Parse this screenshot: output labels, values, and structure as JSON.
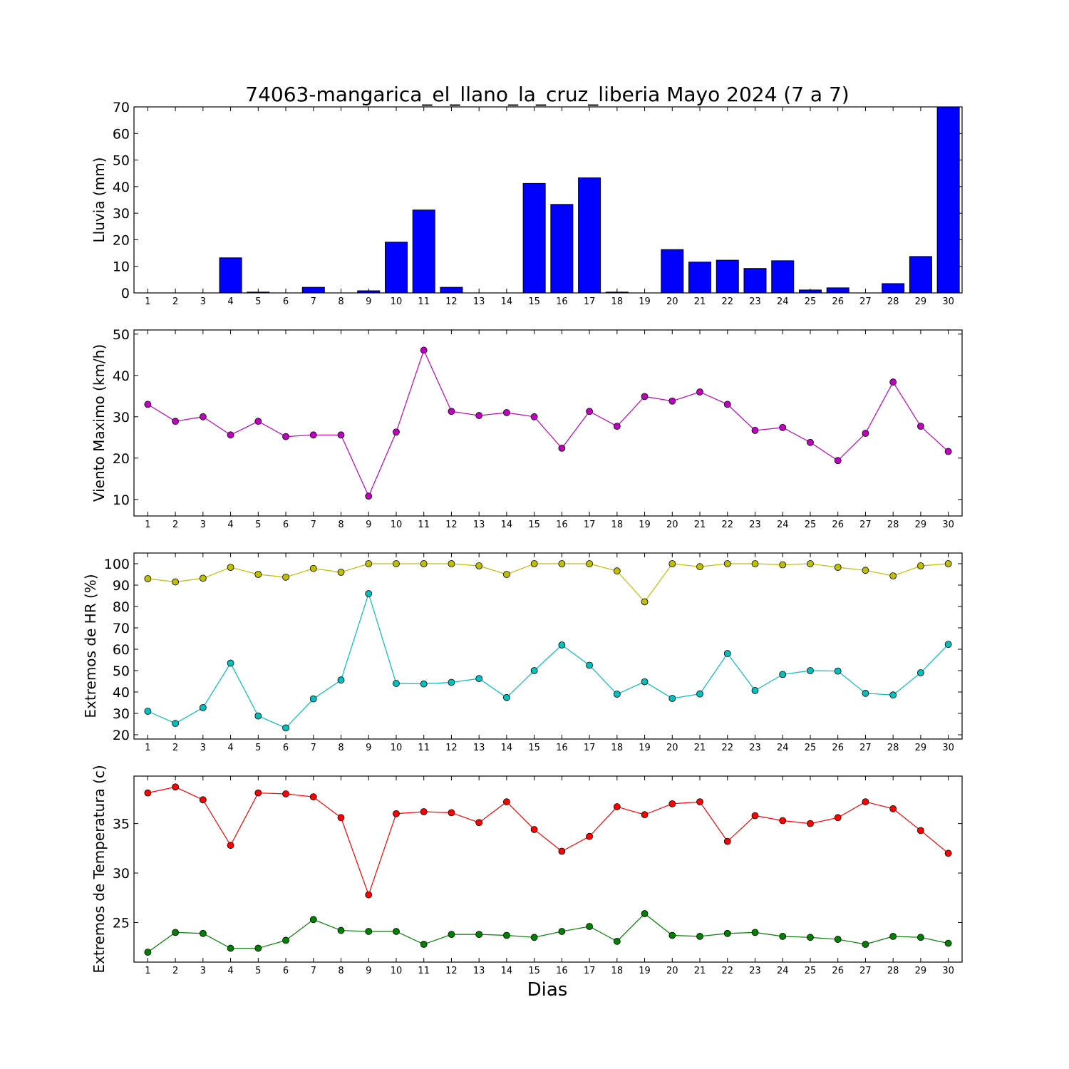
{
  "chart_data": [
    {
      "type": "bar",
      "title": "74063-mangarica_el_llano_la_cruz_liberia Mayo 2024  (7 a 7)",
      "ylabel": "Lluvia (mm)",
      "ylim": [
        0,
        70
      ],
      "yticks": [
        0,
        10,
        20,
        30,
        40,
        50,
        60,
        70
      ],
      "x": [
        1,
        2,
        3,
        4,
        5,
        6,
        7,
        8,
        9,
        10,
        11,
        12,
        13,
        14,
        15,
        16,
        17,
        18,
        19,
        20,
        21,
        22,
        23,
        24,
        25,
        26,
        27,
        28,
        29,
        30
      ],
      "series": [
        {
          "color": "#0000ff",
          "values": [
            0,
            0,
            0,
            13.2,
            0.3,
            0,
            2.1,
            0,
            0.8,
            19.1,
            31.2,
            2.1,
            0,
            0,
            41.2,
            33.3,
            43.3,
            0.3,
            0,
            16.3,
            11.6,
            12.3,
            9.2,
            12.1,
            1.1,
            1.9,
            0,
            3.5,
            13.7,
            70
          ]
        }
      ]
    },
    {
      "type": "line",
      "ylabel": "Viento Maximo (km/h)",
      "ylim": [
        6,
        51
      ],
      "yticks": [
        10,
        20,
        30,
        40,
        50
      ],
      "x": [
        1,
        2,
        3,
        4,
        5,
        6,
        7,
        8,
        9,
        10,
        11,
        12,
        13,
        14,
        15,
        16,
        17,
        18,
        19,
        20,
        21,
        22,
        23,
        24,
        25,
        26,
        27,
        28,
        29,
        30
      ],
      "series": [
        {
          "color": "#bf00bf",
          "values": [
            33,
            28.9,
            30,
            25.6,
            28.9,
            25.2,
            25.6,
            25.6,
            10.8,
            26.3,
            46.1,
            31.3,
            30.3,
            31,
            30,
            22.4,
            31.3,
            27.7,
            34.9,
            33.8,
            36,
            33,
            26.7,
            27.4,
            23.8,
            19.4,
            26,
            38.4,
            27.7,
            21.6
          ]
        }
      ]
    },
    {
      "type": "line",
      "ylabel": "Extremos de HR (%)",
      "ylim": [
        18,
        105
      ],
      "yticks": [
        20,
        30,
        40,
        50,
        60,
        70,
        80,
        90,
        100
      ],
      "x": [
        1,
        2,
        3,
        4,
        5,
        6,
        7,
        8,
        9,
        10,
        11,
        12,
        13,
        14,
        15,
        16,
        17,
        18,
        19,
        20,
        21,
        22,
        23,
        24,
        25,
        26,
        27,
        28,
        29,
        30
      ],
      "series": [
        {
          "color": "#bfbf00",
          "values": [
            93,
            91.5,
            93.2,
            98.3,
            95,
            93.7,
            97.8,
            96,
            100,
            100,
            100,
            100,
            99,
            95,
            100,
            100,
            100,
            96.6,
            82.2,
            100,
            98.6,
            100,
            100,
            99.5,
            100,
            98.3,
            96.9,
            94.3,
            99,
            100
          ]
        },
        {
          "color": "#00bfbf",
          "values": [
            31,
            25.3,
            32.7,
            53.5,
            28.8,
            23.2,
            36.8,
            45.6,
            86,
            44,
            43.8,
            44.5,
            46.3,
            37.4,
            50,
            62,
            52.5,
            39,
            44.8,
            37,
            39.1,
            58,
            40.7,
            48.2,
            50,
            49.8,
            39.4,
            38.6,
            49,
            62.3
          ]
        }
      ]
    },
    {
      "type": "line",
      "ylabel": "Extremos de Temperatura (c)",
      "xlabel": "Dias",
      "ylim": [
        21,
        39.8
      ],
      "yticks": [
        25,
        30,
        35
      ],
      "x": [
        1,
        2,
        3,
        4,
        5,
        6,
        7,
        8,
        9,
        10,
        11,
        12,
        13,
        14,
        15,
        16,
        17,
        18,
        19,
        20,
        21,
        22,
        23,
        24,
        25,
        26,
        27,
        28,
        29,
        30
      ],
      "series": [
        {
          "color": "#ff0000",
          "values": [
            38.1,
            38.7,
            37.4,
            32.8,
            38.1,
            38,
            37.7,
            35.6,
            27.8,
            36,
            36.2,
            36.1,
            35.1,
            37.2,
            34.4,
            32.2,
            33.7,
            36.7,
            35.9,
            37,
            37.2,
            33.2,
            35.8,
            35.3,
            35,
            35.6,
            37.2,
            36.5,
            34.3,
            32
          ]
        },
        {
          "color": "#008000",
          "values": [
            22,
            24,
            23.9,
            22.4,
            22.4,
            23.2,
            25.3,
            24.2,
            24.1,
            24.1,
            22.8,
            23.8,
            23.8,
            23.7,
            23.5,
            24.1,
            24.6,
            23.1,
            25.9,
            23.7,
            23.6,
            23.9,
            24,
            23.6,
            23.5,
            23.3,
            22.8,
            23.6,
            23.5,
            22.9
          ]
        }
      ]
    }
  ]
}
